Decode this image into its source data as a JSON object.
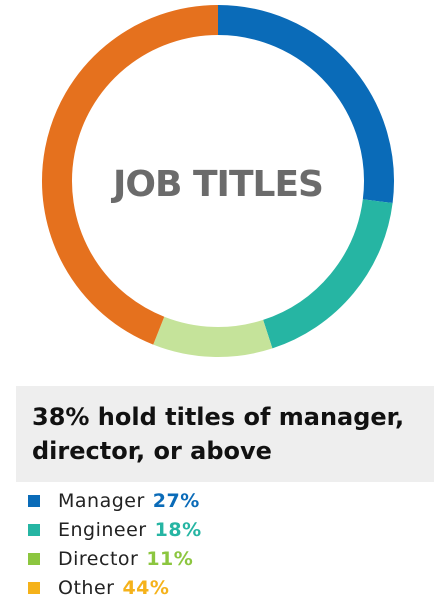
{
  "chart_data": {
    "type": "pie",
    "style": "donut",
    "title": "JOB TITLES",
    "slices": [
      {
        "label": "Manager",
        "value": 27,
        "value_label": "27%",
        "color": "#0a6bb8"
      },
      {
        "label": "Engineer",
        "value": 18,
        "value_label": "18%",
        "color": "#26b5a3"
      },
      {
        "label": "Director",
        "value": 11,
        "value_label": "11%",
        "color": "#c5e39a"
      },
      {
        "label": "Other",
        "value": 44,
        "value_label": "44%",
        "color": "#e5711e"
      }
    ],
    "legend_colors": {
      "Manager": "#0a6bb8",
      "Engineer": "#26b5a3",
      "Director": "#8cc63f",
      "Other": "#f5b21a"
    },
    "legend_placement": "bottom"
  },
  "summary": {
    "line1": "38% hold titles of manager,",
    "line2": "director, or above"
  }
}
